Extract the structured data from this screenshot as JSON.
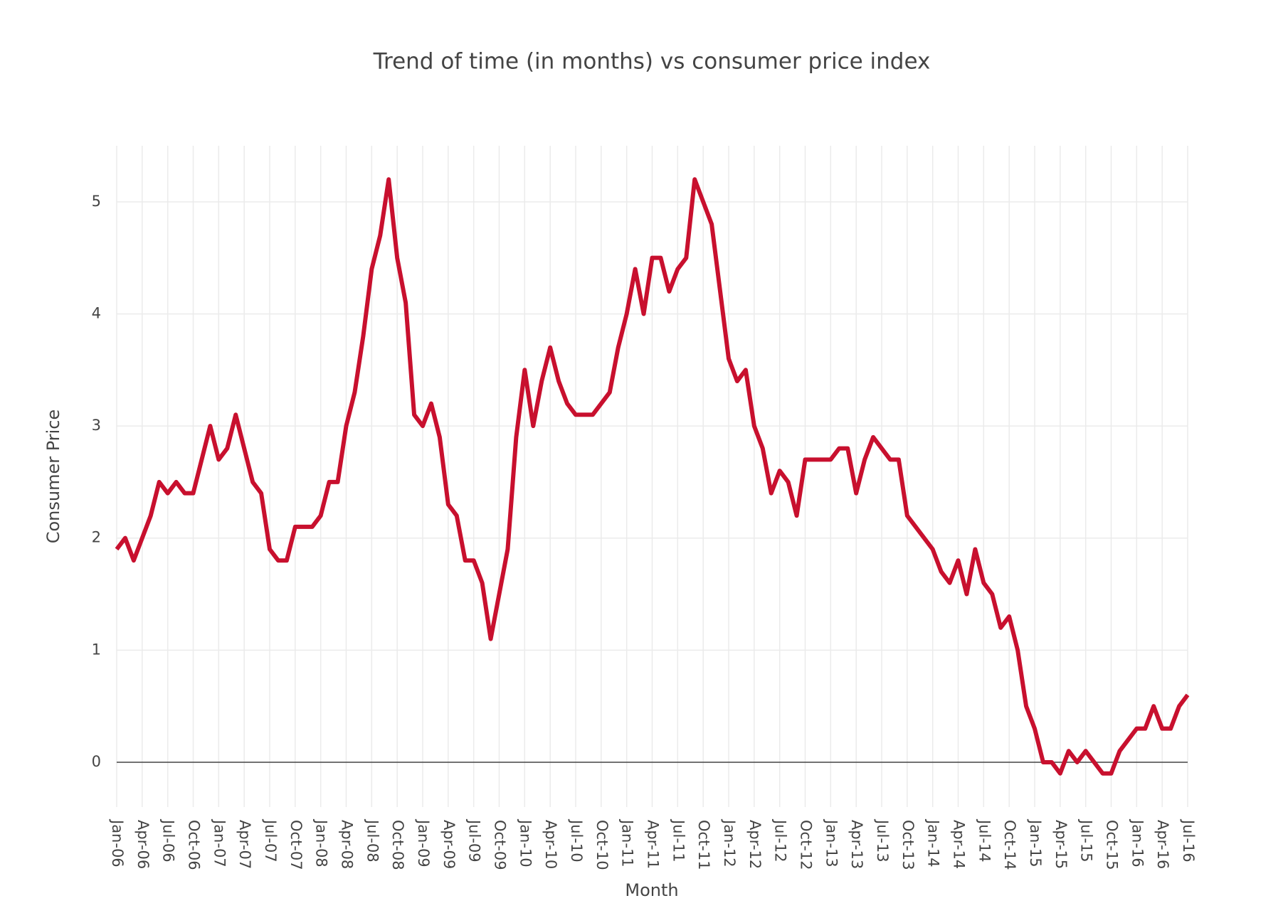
{
  "chart_data": {
    "type": "line",
    "title": "Trend of time (in months) vs consumer price index",
    "x_label": "Month",
    "y_label": "Consumer Price",
    "categories": [
      "Jan-06",
      null,
      null,
      "Apr-06",
      null,
      null,
      "Jul-06",
      null,
      null,
      "Oct-06",
      null,
      null,
      "Jan-07",
      null,
      null,
      "Apr-07",
      null,
      null,
      "Jul-07",
      null,
      null,
      "Oct-07",
      null,
      null,
      "Jan-08",
      null,
      null,
      "Apr-08",
      null,
      null,
      "Jul-08",
      null,
      null,
      "Oct-08",
      null,
      null,
      "Jan-09",
      null,
      null,
      "Apr-09",
      null,
      null,
      "Jul-09",
      null,
      null,
      "Oct-09",
      null,
      null,
      "Jan-10",
      null,
      null,
      "Apr-10",
      null,
      null,
      "Jul-10",
      null,
      null,
      "Oct-10",
      null,
      null,
      "Jan-11",
      null,
      null,
      "Apr-11",
      null,
      null,
      "Jul-11",
      null,
      null,
      "Oct-11",
      null,
      null,
      "Jan-12",
      null,
      null,
      "Apr-12",
      null,
      null,
      "Jul-12",
      null,
      null,
      "Oct-12",
      null,
      null,
      "Jan-13",
      null,
      null,
      "Apr-13",
      null,
      null,
      "Jul-13",
      null,
      null,
      "Oct-13",
      null,
      null,
      "Jan-14",
      null,
      null,
      "Apr-14",
      null,
      null,
      "Jul-14",
      null,
      null,
      "Oct-14",
      null,
      null,
      "Jan-15",
      null,
      null,
      "Apr-15",
      null,
      null,
      "Jul-15",
      null,
      null,
      "Oct-15",
      null,
      null,
      "Jan-16",
      null,
      null,
      "Apr-16",
      null,
      null,
      "Jul-16"
    ],
    "values": [
      1.9,
      2.0,
      1.8,
      2.0,
      2.2,
      2.5,
      2.4,
      2.5,
      2.4,
      2.4,
      2.7,
      3.0,
      2.7,
      2.8,
      3.1,
      2.8,
      2.5,
      2.4,
      1.9,
      1.8,
      1.8,
      2.1,
      2.1,
      2.1,
      2.2,
      2.5,
      2.5,
      3.0,
      3.3,
      3.8,
      4.4,
      4.7,
      5.2,
      4.5,
      4.1,
      3.1,
      3.0,
      3.2,
      2.9,
      2.3,
      2.2,
      1.8,
      1.8,
      1.6,
      1.1,
      1.5,
      1.9,
      2.9,
      3.5,
      3.0,
      3.4,
      3.7,
      3.4,
      3.2,
      3.1,
      3.1,
      3.1,
      3.2,
      3.3,
      3.7,
      4.0,
      4.4,
      4.0,
      4.5,
      4.5,
      4.2,
      4.4,
      4.5,
      5.2,
      5.0,
      4.8,
      4.2,
      3.6,
      3.4,
      3.5,
      3.0,
      2.8,
      2.4,
      2.6,
      2.5,
      2.2,
      2.7,
      2.7,
      2.7,
      2.7,
      2.8,
      2.8,
      2.4,
      2.7,
      2.9,
      2.8,
      2.7,
      2.7,
      2.2,
      2.1,
      2.0,
      1.9,
      1.7,
      1.6,
      1.8,
      1.5,
      1.9,
      1.6,
      1.5,
      1.2,
      1.3,
      1.0,
      0.5,
      0.3,
      0.0,
      0.0,
      -0.1,
      0.1,
      0.0,
      0.1,
      0.0,
      -0.1,
      -0.1,
      0.1,
      0.2,
      0.3,
      0.3,
      0.5,
      0.3,
      0.3,
      0.5,
      0.6
    ],
    "color": "#c8102e",
    "ylim": [
      -0.4,
      5.5
    ],
    "yticks": [
      0,
      1,
      2,
      3,
      4,
      5
    ],
    "grid": true
  }
}
